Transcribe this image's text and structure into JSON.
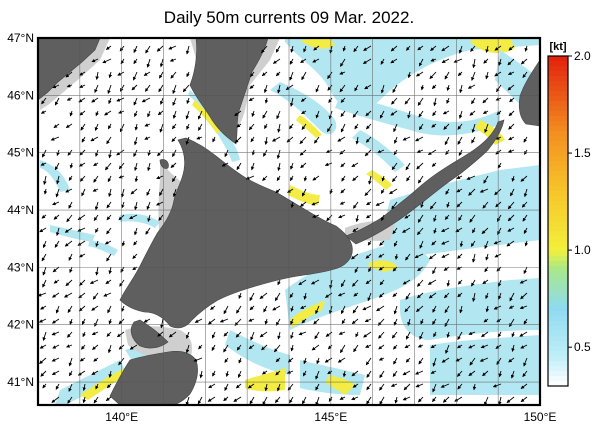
{
  "title": "Daily 50m currents 09 Mar. 2022.",
  "map": {
    "lat_range": [
      40.6,
      47.0
    ],
    "lon_range": [
      138.0,
      150.0
    ],
    "latitude_labels": [
      {
        "lat": 47,
        "label": "47°N"
      },
      {
        "lat": 46,
        "label": "46°N"
      },
      {
        "lat": 45,
        "label": "45°N"
      },
      {
        "lat": 44,
        "label": "44°N"
      },
      {
        "lat": 43,
        "label": "43°N"
      },
      {
        "lat": 42,
        "label": "42°N"
      },
      {
        "lat": 41,
        "label": "41°N"
      }
    ],
    "longitude_labels": [
      {
        "lon": 140,
        "label": "140°E"
      },
      {
        "lon": 145,
        "label": "145°E"
      },
      {
        "lon": 150,
        "label": "150°E"
      }
    ],
    "gridlines": true,
    "colors": {
      "land": "#5f5f5f",
      "shelf": "#cfcfcf",
      "sea": "#ffffff",
      "current_low": "#aee6f2",
      "current_mid": "#f2ec3a",
      "current_high": "#e23a10"
    }
  },
  "colorbar": {
    "unit": "[kt]",
    "min": 0.3,
    "max": 2.0,
    "ticks": [
      {
        "value": 2.0,
        "label": "2.0"
      },
      {
        "value": 1.5,
        "label": "1.5"
      },
      {
        "value": 1.0,
        "label": "1.0"
      },
      {
        "value": 0.5,
        "label": "0.5"
      }
    ],
    "stops": [
      {
        "value": 0.3,
        "color": "#ffffff"
      },
      {
        "value": 0.45,
        "color": "#bfeff8"
      },
      {
        "value": 0.7,
        "color": "#8fdaf0"
      },
      {
        "value": 0.9,
        "color": "#a8e88a"
      },
      {
        "value": 1.0,
        "color": "#f2f03a"
      },
      {
        "value": 1.3,
        "color": "#f7c52a"
      },
      {
        "value": 1.6,
        "color": "#f39020"
      },
      {
        "value": 2.0,
        "color": "#e2200c"
      }
    ]
  }
}
